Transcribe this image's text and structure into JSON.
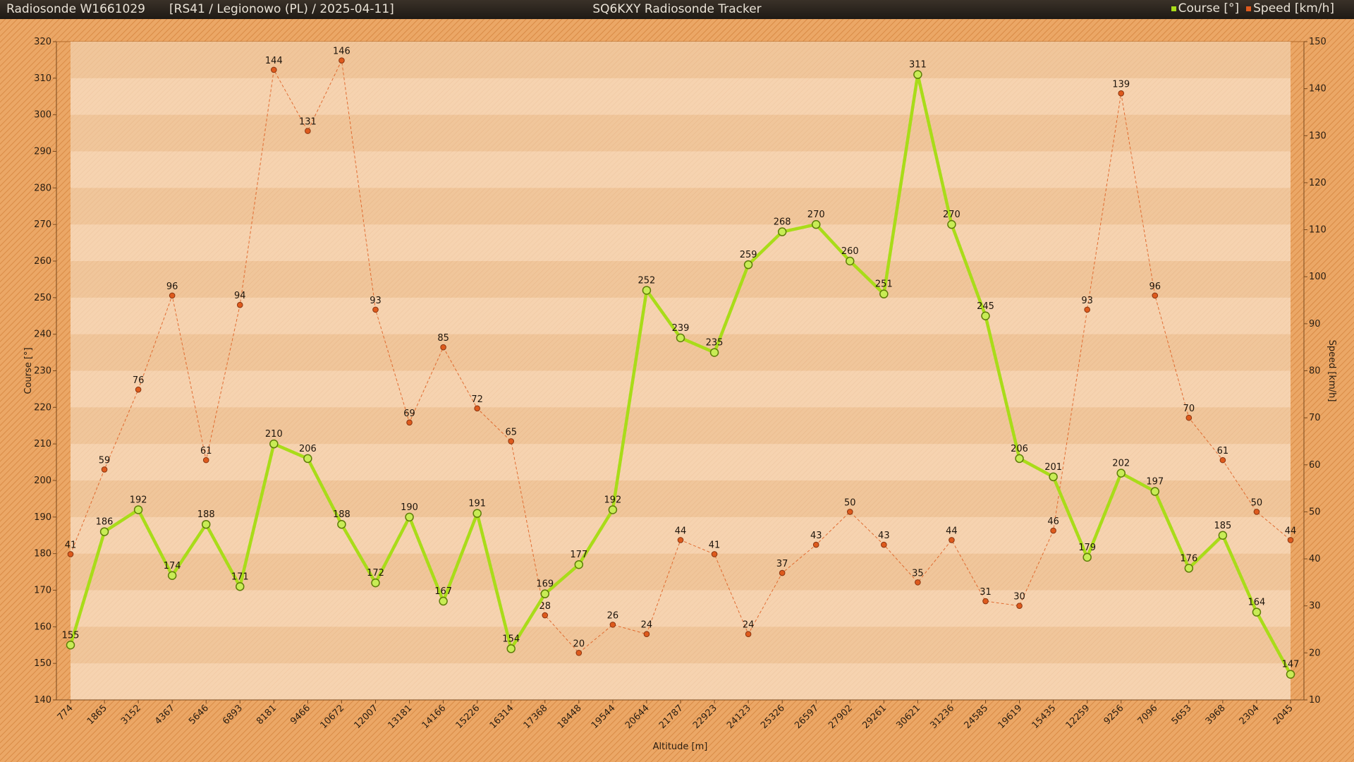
{
  "header": {
    "title": "Radiosonde W1661029",
    "meta": "[RS41 / Legionowo (PL) / 2025-04-11]",
    "app_title": "SQ6KXY Radiosonde Tracker"
  },
  "colors": {
    "course": "#a9dc19",
    "speed": "#dd5a1d"
  },
  "chart_data": {
    "type": "line",
    "xlabel": "Altitude [m]",
    "ylabel": "Course [°]",
    "y2label": "Speed [km/h]",
    "ylim": [
      140,
      320
    ],
    "y2lim": [
      10,
      150
    ],
    "yticks": [
      140,
      150,
      160,
      170,
      180,
      190,
      200,
      210,
      220,
      230,
      240,
      250,
      260,
      270,
      280,
      290,
      300,
      310,
      320
    ],
    "y2ticks": [
      10,
      20,
      30,
      40,
      50,
      60,
      70,
      80,
      90,
      100,
      110,
      120,
      130,
      140,
      150
    ],
    "grid": true,
    "legend": "top-right",
    "categories": [
      "774",
      "1865",
      "3152",
      "4367",
      "5646",
      "6893",
      "8181",
      "9466",
      "10672",
      "12007",
      "13181",
      "14166",
      "15226",
      "16314",
      "17368",
      "18448",
      "19544",
      "20644",
      "21787",
      "22923",
      "24123",
      "25326",
      "26597",
      "27902",
      "29261",
      "30621",
      "31236",
      "24585",
      "19619",
      "15435",
      "12259",
      "9256",
      "7096",
      "5653",
      "3968",
      "2304",
      "2045"
    ],
    "series": [
      {
        "name": "Course [°]",
        "axis": "left",
        "values": [
          155,
          186,
          192,
          174,
          188,
          171,
          210,
          206,
          188,
          172,
          190,
          167,
          191,
          154,
          169,
          177,
          192,
          252,
          239,
          235,
          259,
          268,
          270,
          260,
          251,
          311,
          270,
          245,
          206,
          201,
          179,
          202,
          197,
          176,
          185,
          164,
          147
        ]
      },
      {
        "name": "Speed [km/h]",
        "axis": "right",
        "values": [
          41,
          59,
          76,
          96,
          61,
          94,
          144,
          131,
          146,
          93,
          69,
          85,
          72,
          65,
          28,
          20,
          26,
          24,
          44,
          41,
          24,
          37,
          43,
          50,
          43,
          35,
          44,
          31,
          30,
          46,
          93,
          139,
          96,
          70,
          61,
          50,
          44
        ]
      }
    ]
  }
}
